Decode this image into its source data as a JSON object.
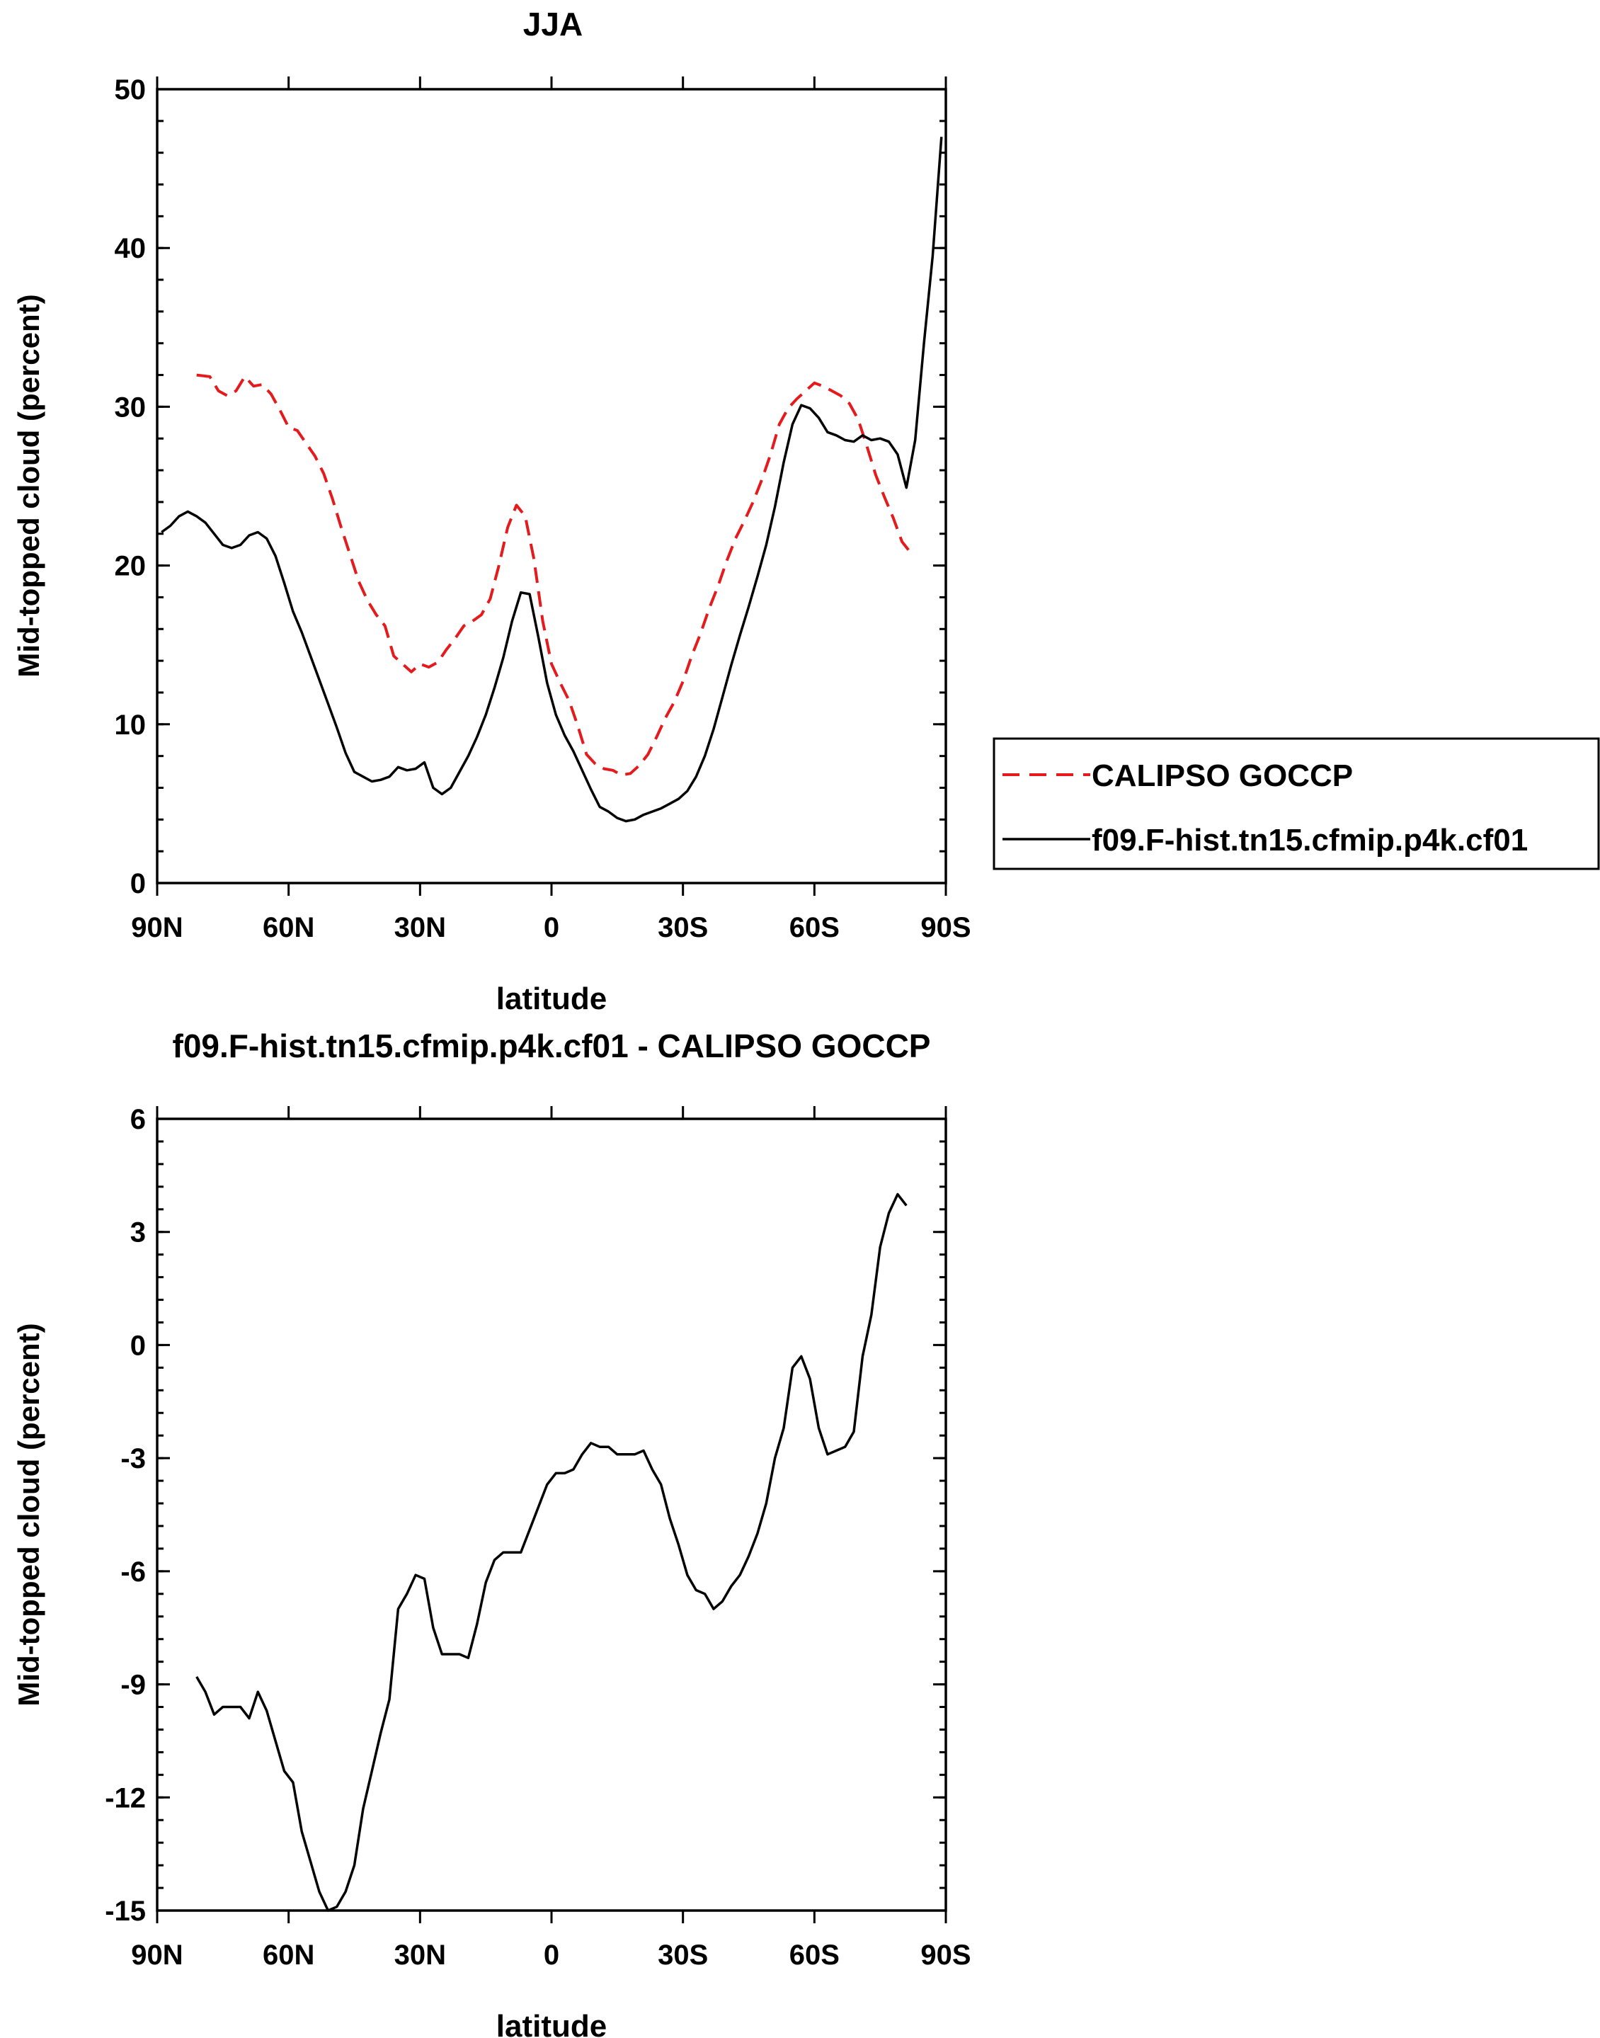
{
  "chart_data": [
    {
      "type": "line",
      "title": "JJA",
      "xlabel": "latitude",
      "ylabel": "Mid-topped cloud (percent)",
      "xlim": [
        -90,
        90
      ],
      "ylim": [
        0,
        50
      ],
      "x_ticks": [
        -90,
        -60,
        -30,
        0,
        30,
        60,
        90
      ],
      "x_tick_labels": [
        "90N",
        "60N",
        "30N",
        "0",
        "30S",
        "60S",
        "90S"
      ],
      "y_ticks": [
        0,
        10,
        20,
        30,
        40,
        50
      ],
      "y_tick_labels": [
        "0",
        "10",
        "20",
        "30",
        "40",
        "50"
      ],
      "legend_position": "right",
      "series": [
        {
          "name": "CALIPSO GOCCP",
          "color": "#e41a1c",
          "dash": "dashed",
          "x": [
            -81,
            -78,
            -76,
            -74,
            -72,
            -70,
            -68,
            -66,
            -64,
            -62,
            -60,
            -58,
            -56,
            -54,
            -52,
            -50,
            -48,
            -46,
            -44,
            -42,
            -40,
            -38,
            -36,
            -34,
            -32,
            -30,
            -28,
            -26,
            -24,
            -22,
            -20,
            -18,
            -16,
            -14,
            -12,
            -10,
            -8,
            -6,
            -4,
            -2,
            0,
            2,
            4,
            6,
            8,
            10,
            12,
            14,
            16,
            18,
            20,
            22,
            24,
            26,
            28,
            30,
            32,
            34,
            36,
            38,
            40,
            42,
            44,
            46,
            48,
            50,
            52,
            54,
            56,
            58,
            60,
            62,
            64,
            66,
            68,
            70,
            72,
            74,
            76,
            78,
            80,
            82
          ],
          "y": [
            32,
            31.9,
            31,
            30.7,
            31,
            31.9,
            31.3,
            31.4,
            30.8,
            29.8,
            28.7,
            28.5,
            27.7,
            26.9,
            25.8,
            24.2,
            22.4,
            20.7,
            19,
            17.8,
            16.9,
            16.2,
            14.3,
            13.8,
            13.3,
            13.8,
            13.6,
            13.9,
            14.7,
            15.4,
            16.2,
            16.5,
            16.9,
            17.9,
            20,
            22.4,
            23.8,
            23.1,
            20.4,
            16.5,
            13.8,
            12.6,
            11.5,
            9.9,
            8.1,
            7.5,
            7.2,
            7.1,
            6.8,
            6.9,
            7.4,
            8.1,
            9.2,
            10.4,
            11.4,
            12.7,
            14.3,
            15.7,
            17.3,
            18.7,
            20.3,
            21.7,
            22.8,
            24,
            25.4,
            27,
            28.9,
            29.9,
            30.5,
            31,
            31.5,
            31.3,
            31,
            30.7,
            30.2,
            29.2,
            27.5,
            25.7,
            24.3,
            23,
            21.5,
            20.8
          ]
        },
        {
          "name": "f09.F-hist.tn15.cfmip.p4k.cf01",
          "color": "#000000",
          "dash": "solid",
          "x": [
            -89,
            -87,
            -85,
            -83,
            -81,
            -79,
            -77,
            -75,
            -73,
            -71,
            -69,
            -67,
            -65,
            -63,
            -61,
            -59,
            -57,
            -55,
            -53,
            -51,
            -49,
            -47,
            -45,
            -43,
            -41,
            -39,
            -37,
            -35,
            -33,
            -31,
            -29,
            -27,
            -25,
            -23,
            -21,
            -19,
            -17,
            -15,
            -13,
            -11,
            -9,
            -7,
            -5,
            -3,
            -1,
            1,
            3,
            5,
            7,
            9,
            11,
            13,
            15,
            17,
            19,
            21,
            23,
            25,
            27,
            29,
            31,
            33,
            35,
            37,
            39,
            41,
            43,
            45,
            47,
            49,
            51,
            53,
            55,
            57,
            59,
            61,
            63,
            65,
            67,
            69,
            71,
            73,
            75,
            77,
            79,
            81,
            83,
            85,
            87,
            89
          ],
          "y": [
            22.1,
            22.5,
            23.1,
            23.4,
            23.1,
            22.7,
            22,
            21.3,
            21.1,
            21.3,
            21.9,
            22.1,
            21.7,
            20.6,
            18.9,
            17.1,
            15.8,
            14.3,
            12.8,
            11.3,
            9.8,
            8.2,
            7,
            6.7,
            6.4,
            6.5,
            6.7,
            7.3,
            7.1,
            7.2,
            7.6,
            6,
            5.6,
            6,
            7,
            8,
            9.2,
            10.6,
            12.3,
            14.2,
            16.5,
            18.3,
            18.2,
            15.5,
            12.6,
            10.6,
            9.3,
            8.3,
            7.1,
            5.9,
            4.8,
            4.5,
            4.1,
            3.9,
            4,
            4.3,
            4.5,
            4.7,
            5,
            5.3,
            5.8,
            6.7,
            8,
            9.7,
            11.7,
            13.7,
            15.6,
            17.4,
            19.3,
            21.3,
            23.7,
            26.5,
            28.9,
            30.1,
            29.9,
            29.3,
            28.4,
            28.2,
            27.9,
            27.8,
            28.2,
            27.9,
            28,
            27.8,
            27,
            24.9,
            27.9,
            34,
            39.5,
            47
          ]
        }
      ]
    },
    {
      "type": "line",
      "title": "f09.F-hist.tn15.cfmip.p4k.cf01 - CALIPSO GOCCP",
      "xlabel": "latitude",
      "ylabel": "Mid-topped cloud (percent)",
      "xlim": [
        -90,
        90
      ],
      "ylim": [
        -15,
        6
      ],
      "x_ticks": [
        -90,
        -60,
        -30,
        0,
        30,
        60,
        90
      ],
      "x_tick_labels": [
        "90N",
        "60N",
        "30N",
        "0",
        "30S",
        "60S",
        "90S"
      ],
      "y_ticks": [
        -15,
        -12,
        -9,
        -6,
        -3,
        0,
        3,
        6
      ],
      "y_tick_labels": [
        "-15",
        "-12",
        "-9",
        "-6",
        "-3",
        "0",
        "3",
        "6"
      ],
      "series": [
        {
          "color": "#000000",
          "dash": "solid",
          "x": [
            -81,
            -79,
            -77,
            -75,
            -73,
            -71,
            -69,
            -67,
            -65,
            -63,
            -61,
            -59,
            -57,
            -55,
            -53,
            -51,
            -49,
            -47,
            -45,
            -43,
            -41,
            -39,
            -37,
            -35,
            -33,
            -31,
            -29,
            -27,
            -25,
            -23,
            -21,
            -19,
            -17,
            -15,
            -13,
            -11,
            -9,
            -7,
            -5,
            -3,
            -1,
            1,
            3,
            5,
            7,
            9,
            11,
            13,
            15,
            17,
            19,
            21,
            23,
            25,
            27,
            29,
            31,
            33,
            35,
            37,
            39,
            41,
            43,
            45,
            47,
            49,
            51,
            53,
            55,
            57,
            59,
            61,
            63,
            65,
            67,
            69,
            71,
            73,
            75,
            77,
            79,
            81
          ],
          "y": [
            -8.8,
            -9.2,
            -9.8,
            -9.6,
            -9.6,
            -9.6,
            -9.9,
            -9.2,
            -9.7,
            -10.5,
            -11.3,
            -11.6,
            -12.9,
            -13.7,
            -14.5,
            -15,
            -14.9,
            -14.5,
            -13.8,
            -12.3,
            -11.3,
            -10.3,
            -9.4,
            -7,
            -6.6,
            -6.1,
            -6.2,
            -7.5,
            -8.2,
            -8.2,
            -8.2,
            -8.3,
            -7.4,
            -6.3,
            -5.7,
            -5.5,
            -5.5,
            -5.5,
            -4.9,
            -4.3,
            -3.7,
            -3.4,
            -3.4,
            -3.3,
            -2.9,
            -2.6,
            -2.7,
            -2.7,
            -2.9,
            -2.9,
            -2.9,
            -2.8,
            -3.3,
            -3.7,
            -4.6,
            -5.3,
            -6.1,
            -6.5,
            -6.6,
            -7,
            -6.8,
            -6.4,
            -6.1,
            -5.6,
            -5,
            -4.2,
            -3,
            -2.2,
            -0.6,
            -0.3,
            -0.9,
            -2.2,
            -2.9,
            -2.8,
            -2.7,
            -2.3,
            -0.3,
            0.8,
            2.6,
            3.5,
            4,
            3.7
          ]
        }
      ]
    }
  ]
}
